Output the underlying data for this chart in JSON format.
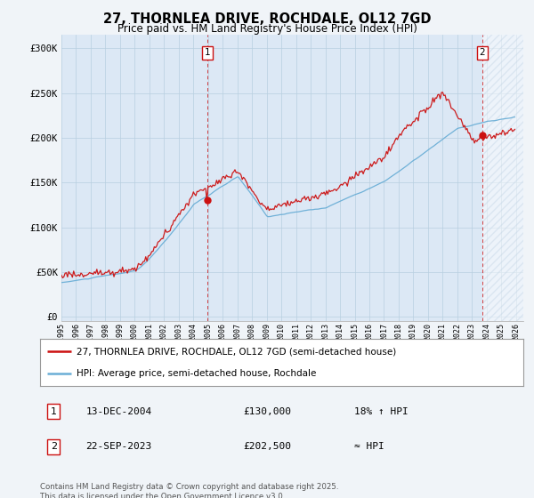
{
  "title": "27, THORNLEA DRIVE, ROCHDALE, OL12 7GD",
  "subtitle": "Price paid vs. HM Land Registry's House Price Index (HPI)",
  "ylabel_ticks": [
    "£0",
    "£50K",
    "£100K",
    "£150K",
    "£200K",
    "£250K",
    "£300K"
  ],
  "ytick_values": [
    0,
    50000,
    100000,
    150000,
    200000,
    250000,
    300000
  ],
  "ylim": [
    -5000,
    315000
  ],
  "x_start_year": 1995,
  "x_end_year": 2026,
  "hpi_color": "#6aaed6",
  "price_color": "#cc1111",
  "annotation1": [
    "13-DEC-2004",
    "£130,000",
    "18% ↑ HPI"
  ],
  "annotation2": [
    "22-SEP-2023",
    "£202,500",
    "≈ HPI"
  ],
  "legend_line1": "27, THORNLEA DRIVE, ROCHDALE, OL12 7GD (semi-detached house)",
  "legend_line2": "HPI: Average price, semi-detached house, Rochdale",
  "footer": "Contains HM Land Registry data © Crown copyright and database right 2025.\nThis data is licensed under the Open Government Licence v3.0.",
  "bg_color": "#f0f4f8",
  "plot_bg_color": "#dce8f5",
  "grid_color": "#b8cfe0",
  "hatch_color": "#c8d8e8",
  "t1_year": 2004.958,
  "t2_year": 2023.708
}
